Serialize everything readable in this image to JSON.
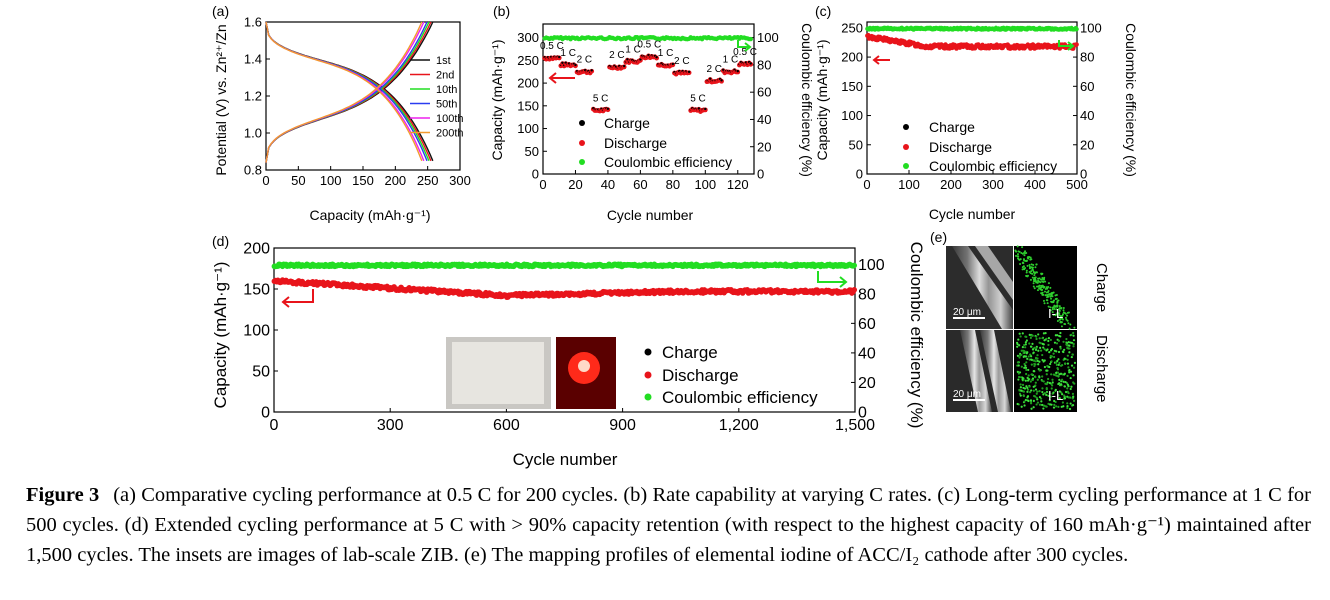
{
  "caption": {
    "label": "Figure 3",
    "text": "(a) Comparative cycling performance at 0.5 C for 200 cycles. (b) Rate capability at varying C rates. (c) Long-term cycling performance at 1 C for 500 cycles. (d) Extended cycling performance at 5 C with > 90% capacity retention (with respect to the highest capacity of 160 mAh·g⁻¹) maintained after 1,500 cycles. The insets are images of lab-scale ZIB. (e) The mapping profiles of elemental iodine of ACC/I₂ cathode after 300 cycles."
  },
  "legend": {
    "charge": "Charge",
    "discharge": "Discharge",
    "ce": "Coulombic efficiency"
  },
  "panel_e": {
    "label": "(e)",
    "scale": "20 μm",
    "element": "I-L",
    "charge": "Charge",
    "discharge": "Discharge"
  },
  "colors": {
    "charge": "#000000",
    "discharge": "#e8141b",
    "ce": "#22dd22"
  },
  "chart_data": [
    {
      "panel": "(a)",
      "type": "line",
      "xlabel": "Capacity (mAh·g⁻¹)",
      "ylabel": "Potential (V) vs. Zn²⁺/Zn",
      "xlim": [
        0,
        300
      ],
      "ylim": [
        0.8,
        1.6
      ],
      "xticks": [
        0,
        50,
        100,
        150,
        200,
        250,
        300
      ],
      "yticks": [
        0.8,
        1.0,
        1.2,
        1.4,
        1.6
      ],
      "series": [
        {
          "name": "1st",
          "color": "#111111",
          "xmax": 258
        },
        {
          "name": "2nd",
          "color": "#e8141b",
          "xmax": 255
        },
        {
          "name": "10th",
          "color": "#22dd22",
          "xmax": 252
        },
        {
          "name": "50th",
          "color": "#2a3cf0",
          "xmax": 249
        },
        {
          "name": "100th",
          "color": "#ee22ee",
          "xmax": 244
        },
        {
          "name": "200th",
          "color": "#f29a2e",
          "xmax": 241
        }
      ]
    },
    {
      "panel": "(b)",
      "type": "scatter",
      "xlabel": "Cycle number",
      "ylabel": "Capacity (mAh·g⁻¹)",
      "y2label": "Coulombic efficiency (%)",
      "xlim": [
        0,
        130
      ],
      "ylim": [
        0,
        330
      ],
      "y2lim": [
        0,
        110
      ],
      "xticks": [
        0,
        20,
        40,
        60,
        80,
        100,
        120
      ],
      "yticks": [
        0,
        50,
        100,
        150,
        200,
        250,
        300
      ],
      "y2ticks": [
        0,
        20,
        40,
        60,
        80,
        100
      ],
      "segments": [
        {
          "rate": "0.5 C",
          "start": 1,
          "end": 10,
          "capacity": 255
        },
        {
          "rate": "1 C",
          "start": 11,
          "end": 20,
          "capacity": 240
        },
        {
          "rate": "2 C",
          "start": 21,
          "end": 30,
          "capacity": 225
        },
        {
          "rate": "5 C",
          "start": 31,
          "end": 40,
          "capacity": 140
        },
        {
          "rate": "2 C",
          "start": 41,
          "end": 50,
          "capacity": 235
        },
        {
          "rate": "1 C",
          "start": 51,
          "end": 60,
          "capacity": 248
        },
        {
          "rate": "0.5 C",
          "start": 61,
          "end": 70,
          "capacity": 258
        },
        {
          "rate": "1 C",
          "start": 71,
          "end": 80,
          "capacity": 240
        },
        {
          "rate": "2 C",
          "start": 81,
          "end": 90,
          "capacity": 222
        },
        {
          "rate": "5 C",
          "start": 91,
          "end": 100,
          "capacity": 140
        },
        {
          "rate": "2 C",
          "start": 101,
          "end": 110,
          "capacity": 205
        },
        {
          "rate": "1 C",
          "start": 111,
          "end": 120,
          "capacity": 225
        },
        {
          "rate": "0.5 C",
          "start": 121,
          "end": 128,
          "capacity": 242
        }
      ],
      "ce": 100
    },
    {
      "panel": "(c)",
      "type": "scatter",
      "xlabel": "Cycle number",
      "ylabel": "Capacity (mAh·g⁻¹)",
      "y2label": "Coulombic efficiency (%)",
      "xlim": [
        0,
        500
      ],
      "ylim": [
        0,
        260
      ],
      "y2lim": [
        0,
        104
      ],
      "xticks": [
        0,
        100,
        200,
        300,
        400,
        500
      ],
      "yticks": [
        0,
        50,
        100,
        150,
        200,
        250
      ],
      "y2ticks": [
        0,
        20,
        40,
        60,
        80,
        100
      ],
      "capacity_start": 235,
      "capacity_end": 218,
      "ce": 100
    },
    {
      "panel": "(d)",
      "type": "scatter",
      "xlabel": "Cycle number",
      "ylabel": "Capacity (mAh·g⁻¹)",
      "y2label": "Coulombic efficiency (%)",
      "xlim": [
        0,
        1500
      ],
      "ylim": [
        0,
        200
      ],
      "y2lim": [
        0,
        111
      ],
      "xticks": [
        0,
        300,
        600,
        900,
        1200,
        1500
      ],
      "xticklabels": [
        "0",
        "300",
        "600",
        "900",
        "1,200",
        "1,500"
      ],
      "yticks": [
        0,
        50,
        100,
        150,
        200
      ],
      "y2ticks": [
        0,
        20,
        40,
        60,
        80,
        100
      ],
      "capacity_start": 160,
      "capacity_min": 142,
      "capacity_end": 147,
      "ce": 100
    }
  ]
}
